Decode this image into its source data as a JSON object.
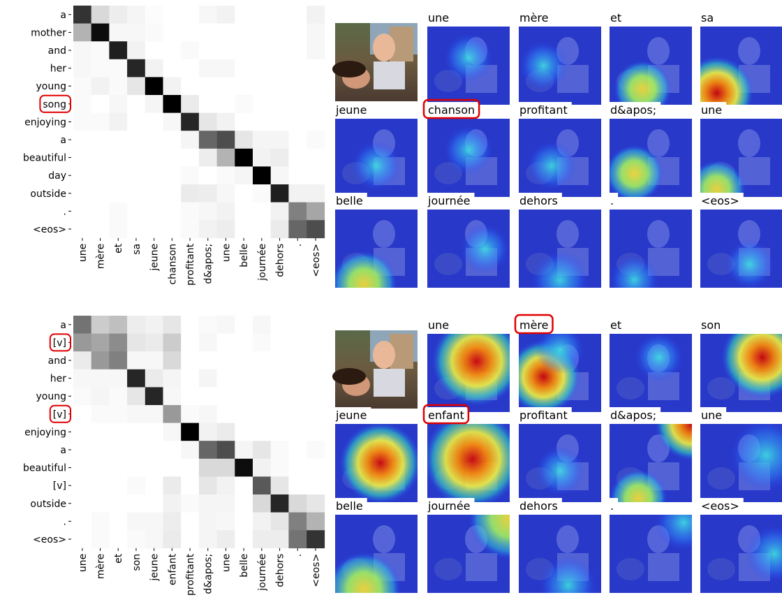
{
  "chart_data": [
    {
      "type": "heatmap",
      "rows": [
        "a",
        "mother",
        "and",
        "her",
        "young",
        "song",
        "enjoying",
        "a",
        "beautiful",
        "day",
        "outside",
        ".",
        "<eos>"
      ],
      "categories": [
        "une",
        "mère",
        "et",
        "sa",
        "jeune",
        "chanson",
        "profitant",
        "d&apos;",
        "une",
        "belle",
        "journée",
        "dehors",
        ".",
        "<eos>"
      ],
      "highlighted_rows": [
        5
      ],
      "values": [
        [
          0.8,
          0.15,
          0.07,
          0.04,
          0.01,
          0,
          0,
          0.03,
          0.05,
          0,
          0,
          0,
          0,
          0.05
        ],
        [
          0.3,
          0.95,
          0.03,
          0.03,
          0.02,
          0,
          0,
          0,
          0,
          0,
          0,
          0,
          0,
          0.03
        ],
        [
          0.03,
          0.02,
          0.88,
          0.05,
          0,
          0,
          0.02,
          0,
          0,
          0,
          0,
          0,
          0,
          0.03
        ],
        [
          0.03,
          0.02,
          0.02,
          0.85,
          0.05,
          0,
          0,
          0.03,
          0.03,
          0,
          0,
          0,
          0,
          0
        ],
        [
          0.02,
          0.05,
          0.02,
          0.1,
          1.0,
          0.05,
          0,
          0,
          0,
          0,
          0,
          0,
          0,
          0
        ],
        [
          0.02,
          0,
          0.03,
          0,
          0.04,
          1.0,
          0.08,
          0,
          0,
          0.02,
          0,
          0,
          0,
          0
        ],
        [
          0.02,
          0.02,
          0.05,
          0,
          0,
          0.03,
          0.85,
          0.1,
          0.05,
          0,
          0,
          0,
          0,
          0
        ],
        [
          0,
          0,
          0,
          0,
          0,
          0,
          0.04,
          0.6,
          0.7,
          0.1,
          0.04,
          0.04,
          0,
          0.02
        ],
        [
          0,
          0,
          0,
          0,
          0,
          0,
          0,
          0.07,
          0.3,
          1.0,
          0.05,
          0.07,
          0,
          0
        ],
        [
          0,
          0,
          0,
          0,
          0,
          0,
          0.02,
          0,
          0.02,
          0.04,
          1.0,
          0.03,
          0,
          0
        ],
        [
          0,
          0,
          0,
          0,
          0,
          0,
          0.08,
          0.07,
          0.03,
          0,
          0.02,
          0.88,
          0.05,
          0.05
        ],
        [
          0,
          0,
          0.02,
          0,
          0,
          0,
          0.02,
          0.03,
          0.05,
          0,
          0,
          0.05,
          0.5,
          0.35
        ],
        [
          0,
          0,
          0.02,
          0,
          0,
          0,
          0.02,
          0.05,
          0.07,
          0,
          0,
          0.08,
          0.6,
          0.7
        ]
      ]
    },
    {
      "type": "heatmap",
      "rows": [
        "a",
        "[v]",
        "and",
        "her",
        "young",
        "[v]",
        "enjoying",
        "a",
        "beautiful",
        "[v]",
        "outside",
        ".",
        "<eos>"
      ],
      "categories": [
        "une",
        "mère",
        "et",
        "son",
        "jeune",
        "enfant",
        "profitant",
        "d&apos;",
        "une",
        "belle",
        "journée",
        "dehors",
        ".",
        "<eos>"
      ],
      "highlighted_rows": [
        1,
        5
      ],
      "values": [
        [
          0.55,
          0.2,
          0.25,
          0.07,
          0.05,
          0.1,
          0,
          0.02,
          0.03,
          0,
          0.03,
          0,
          0,
          0
        ],
        [
          0.4,
          0.35,
          0.45,
          0.1,
          0.08,
          0.2,
          0,
          0.03,
          0,
          0,
          0.02,
          0,
          0,
          0
        ],
        [
          0.08,
          0.4,
          0.5,
          0.03,
          0.03,
          0.15,
          0,
          0,
          0,
          0,
          0,
          0,
          0,
          0
        ],
        [
          0.03,
          0.03,
          0.03,
          0.85,
          0.08,
          0.04,
          0,
          0.04,
          0,
          0,
          0,
          0,
          0,
          0
        ],
        [
          0.02,
          0.04,
          0.02,
          0.1,
          0.85,
          0.03,
          0,
          0,
          0,
          0,
          0,
          0,
          0,
          0
        ],
        [
          0,
          0.02,
          0.02,
          0.03,
          0.03,
          0.4,
          0.02,
          0.03,
          0,
          0,
          0,
          0,
          0,
          0
        ],
        [
          0,
          0,
          0,
          0,
          0,
          0.03,
          1.0,
          0.05,
          0.08,
          0,
          0,
          0,
          0,
          0
        ],
        [
          0,
          0,
          0,
          0,
          0,
          0,
          0.03,
          0.6,
          0.7,
          0.04,
          0.1,
          0.02,
          0,
          0.02
        ],
        [
          0,
          0,
          0,
          0,
          0,
          0,
          0,
          0.15,
          0.15,
          0.95,
          0.05,
          0.02,
          0,
          0
        ],
        [
          0,
          0,
          0,
          0.02,
          0,
          0.08,
          0,
          0.1,
          0.05,
          0,
          0.65,
          0.1,
          0,
          0
        ],
        [
          0,
          0,
          0,
          0,
          0,
          0.05,
          0.02,
          0.04,
          0.04,
          0,
          0.15,
          0.85,
          0.15,
          0.1
        ],
        [
          0,
          0.02,
          0,
          0.03,
          0.03,
          0.07,
          0,
          0.04,
          0.03,
          0,
          0.05,
          0.1,
          0.5,
          0.3
        ],
        [
          0,
          0.02,
          0,
          0.02,
          0.03,
          0.08,
          0,
          0.04,
          0.07,
          0,
          0.07,
          0.07,
          0.55,
          0.8
        ]
      ]
    }
  ],
  "attention_maps": [
    {
      "labels": [
        "une",
        "mère",
        "et",
        "sa",
        "jeune",
        "chanson",
        "profitant",
        "d&apos;",
        "une",
        "belle",
        "journée",
        "dehors",
        ".",
        "<eos>"
      ],
      "highlighted": [
        5
      ]
    },
    {
      "labels": [
        "une",
        "mère",
        "et",
        "son",
        "jeune",
        "enfant",
        "profitant",
        "d&apos;",
        "une",
        "belle",
        "journée",
        "dehors",
        ".",
        "<eos>"
      ],
      "highlighted": [
        1,
        5
      ]
    }
  ]
}
